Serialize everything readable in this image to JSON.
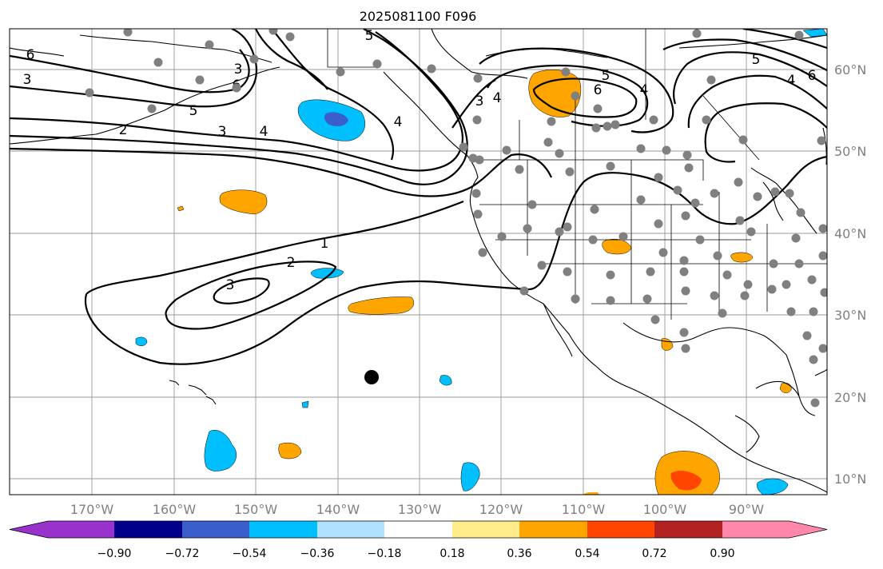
{
  "title": "2025081100 F096",
  "lon_labels": [
    "170°W",
    "160°W",
    "150°W",
    "140°W",
    "130°W",
    "120°W",
    "110°W",
    "100°W",
    "90°W"
  ],
  "lat_labels": [
    "60°N",
    "50°N",
    "40°N",
    "30°N",
    "20°N",
    "10°N"
  ],
  "colorbar": {
    "ticks": [
      "−0.90",
      "−0.72",
      "−0.54",
      "−0.36",
      "−0.18",
      "0.18",
      "0.36",
      "0.54",
      "0.72",
      "0.90"
    ],
    "colors": [
      "#9932cc",
      "#00008b",
      "#3a5fcd",
      "#00bfff",
      "#b0e2ff",
      "#ffffff",
      "#ffec8b",
      "#ffa500",
      "#ff4500",
      "#b22222",
      "#ff88aa"
    ]
  },
  "contour_labels": [
    "6",
    "3",
    "5",
    "2",
    "3",
    "4",
    "3",
    "4",
    "5",
    "6",
    "4",
    "5",
    "4",
    "6",
    "1",
    "2",
    "3",
    "3",
    "4",
    "5",
    "6"
  ],
  "colors": {
    "station_dot": "#808080",
    "storm_marker": "#000000",
    "orange": "#ffa500",
    "blue": "#00bfff",
    "dark_blue": "#3a5fcd",
    "red": "#ff4500"
  }
}
